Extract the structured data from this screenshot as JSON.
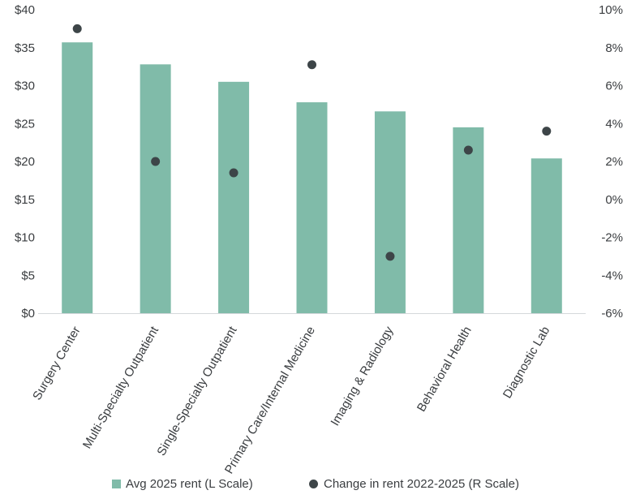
{
  "chart_data": {
    "type": "bar",
    "categories": [
      "Surgery Center",
      "Multi-Specialty Outpatient",
      "Single-Specialty Outpatient",
      "Primary Care/Internal Medicine",
      "Imaging & Radiology",
      "Behavioral Health",
      "Diagnostic Lab"
    ],
    "series": [
      {
        "name": "Avg 2025 rent (L Scale)",
        "type": "bar",
        "axis": "left",
        "values": [
          35.7,
          32.8,
          30.5,
          27.8,
          26.6,
          24.5,
          20.4
        ]
      },
      {
        "name": "Change in rent 2022-2025 (R Scale)",
        "type": "scatter",
        "axis": "right",
        "values": [
          9.0,
          2.0,
          1.4,
          7.1,
          -3.0,
          2.6,
          3.6
        ]
      }
    ],
    "left_axis": {
      "ylim": [
        0,
        40
      ],
      "ticks": [
        0,
        5,
        10,
        15,
        20,
        25,
        30,
        35,
        40
      ],
      "tick_labels": [
        "$0",
        "$5",
        "$10",
        "$15",
        "$20",
        "$25",
        "$30",
        "$35",
        "$40"
      ]
    },
    "right_axis": {
      "ylim": [
        -6,
        10
      ],
      "ticks": [
        -6,
        -4,
        -2,
        0,
        2,
        4,
        6,
        8,
        10
      ],
      "tick_labels": [
        "-6%",
        "-4%",
        "-2%",
        "0%",
        "2%",
        "4%",
        "6%",
        "8%",
        "10%"
      ]
    },
    "title": "",
    "xlabel": "",
    "ylabel": "",
    "grid": false,
    "legend_position": "bottom",
    "colors": {
      "bar": "#80bba9",
      "dot": "#3d4548",
      "axis": "#d4d8db",
      "text": "#3a3d40"
    }
  }
}
